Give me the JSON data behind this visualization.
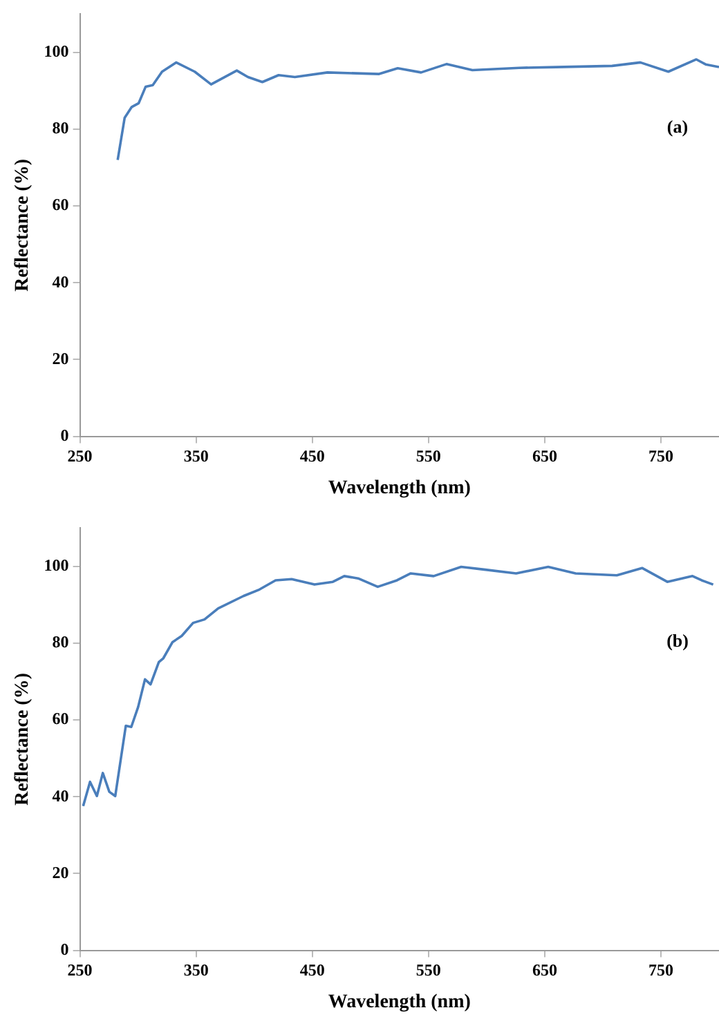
{
  "chart_data": [
    {
      "type": "line",
      "xlabel": "Wavelength (nm)",
      "ylabel": "Reflectance (%)",
      "annotations": [
        "(a)"
      ],
      "xlim": [
        250,
        800
      ],
      "xticks": [
        250,
        350,
        450,
        550,
        650,
        750
      ],
      "ylim": [
        0,
        110
      ],
      "yticks": [
        0,
        20,
        40,
        60,
        80,
        100
      ],
      "grid": false,
      "legend": false,
      "marker": "none",
      "line_style": "solid",
      "x": [
        282.5,
        288.5,
        294.6,
        300.6,
        306.6,
        312.7,
        320.7,
        332.8,
        348.8,
        362.9,
        385,
        394.6,
        407,
        421,
        435,
        463,
        507.5,
        523.5,
        543.6,
        565.7,
        587.8,
        628,
        660,
        708,
        732.3,
        756.4,
        780.5,
        788.5,
        800
      ],
      "series": [
        {
          "color": "#4a7ebb",
          "values": [
            72,
            83,
            85.8,
            86.8,
            91.1,
            91.5,
            95,
            97.4,
            95,
            91.7,
            95.3,
            93.6,
            92.3,
            94.1,
            93.6,
            94.8,
            94.4,
            95.9,
            94.8,
            97,
            95.4,
            96,
            96.2,
            96.5,
            97.4,
            95,
            98.2,
            96.9,
            96.2
          ]
        }
      ]
    },
    {
      "type": "line",
      "xlabel": "Wavelength (nm)",
      "ylabel": "Reflectance (%)",
      "annotations": [
        "(b)"
      ],
      "xlim": [
        250,
        800
      ],
      "xticks": [
        250,
        350,
        450,
        550,
        650,
        750
      ],
      "ylim": [
        0,
        110
      ],
      "yticks": [
        0,
        20,
        40,
        60,
        80,
        100
      ],
      "grid": false,
      "legend": false,
      "marker": "none",
      "line_style": "solid",
      "x": [
        252.8,
        258.7,
        264.6,
        269.7,
        275.3,
        280.4,
        289.5,
        294.2,
        300.1,
        306,
        310.8,
        317.9,
        321.8,
        329.7,
        337.6,
        347.4,
        357.2,
        369,
        390.7,
        404.5,
        418.4,
        432.2,
        451.9,
        467.7,
        477.5,
        489.4,
        506.3,
        522.9,
        534.7,
        554.4,
        578.1,
        597.8,
        625.4,
        653,
        676.6,
        712.1,
        733.8,
        755.5,
        777.2,
        785.1,
        795
      ],
      "series": [
        {
          "color": "#4a7ebb",
          "values": [
            37.6,
            43.9,
            40.2,
            46.2,
            41.3,
            40.2,
            58.5,
            58.2,
            63.4,
            70.6,
            69.3,
            75.1,
            76.1,
            80.3,
            81.9,
            85.3,
            86.2,
            89.1,
            92.3,
            94,
            96.4,
            96.7,
            95.3,
            96,
            97.5,
            96.9,
            94.7,
            96.4,
            98.2,
            97.5,
            99.9,
            99.2,
            98.2,
            99.9,
            98.2,
            97.7,
            99.6,
            96,
            97.5,
            96.4,
            95.3
          ]
        }
      ]
    }
  ]
}
